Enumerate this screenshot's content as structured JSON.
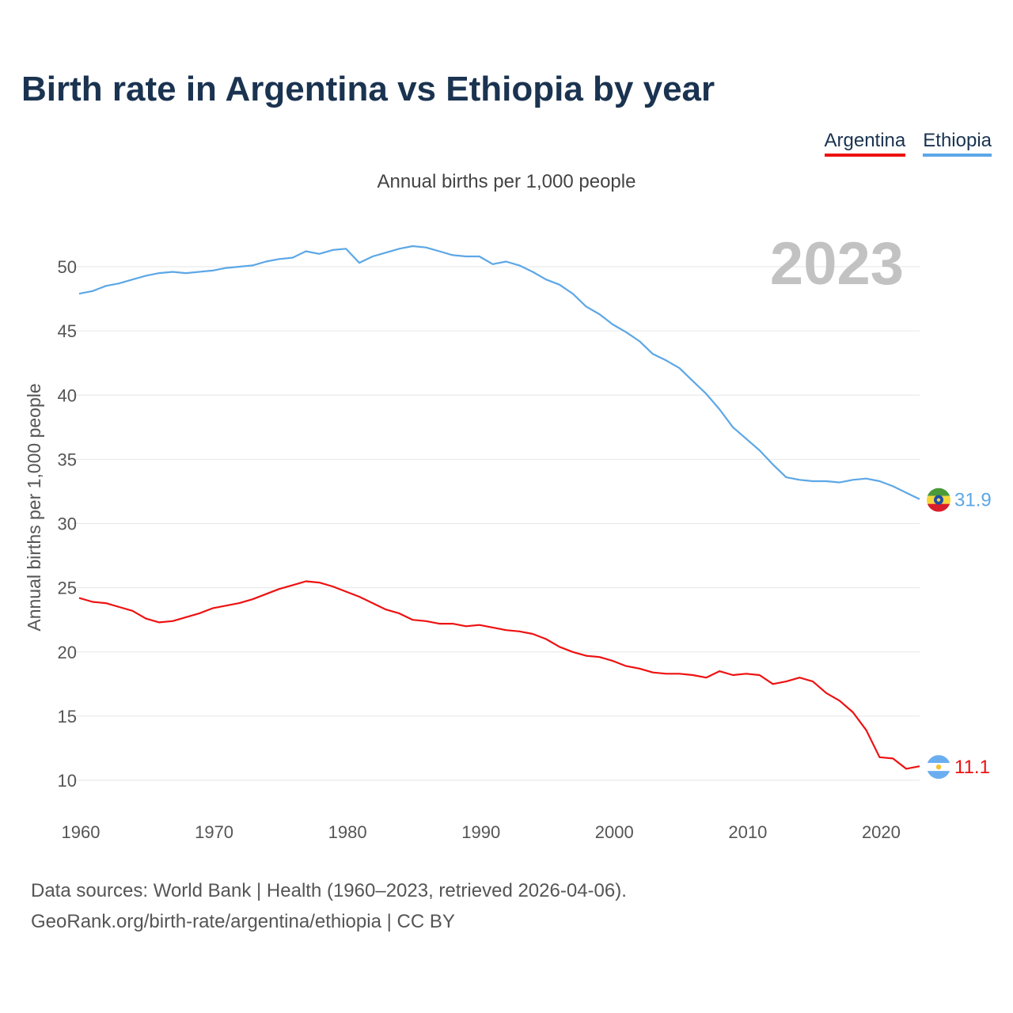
{
  "title": "Birth rate in Argentina vs Ethiopia by year",
  "subtitle": "Annual births per 1,000 people",
  "year_watermark": "2023",
  "legend": [
    {
      "label": "Argentina",
      "color": "#ee1111"
    },
    {
      "label": "Ethiopia",
      "color": "#5ca7e6"
    }
  ],
  "source": {
    "line1": "Data sources: World Bank | Health (1960–2023, retrieved 2026-04-06).",
    "line2": "GeoRank.org/birth-rate/argentina/ethiopia | CC BY"
  },
  "chart_data": {
    "type": "line",
    "title": "Birth rate in Argentina vs Ethiopia by year",
    "ylabel": "Annual births per 1,000 people",
    "xlabel": "",
    "xlim": [
      1960,
      2023
    ],
    "ylim": [
      8,
      54
    ],
    "yticks": [
      10,
      15,
      20,
      25,
      30,
      35,
      40,
      45,
      50
    ],
    "xticks": [
      1960,
      1970,
      1980,
      1990,
      2000,
      2010,
      2020
    ],
    "grid": true,
    "x": [
      1960,
      1961,
      1962,
      1963,
      1964,
      1965,
      1966,
      1967,
      1968,
      1969,
      1970,
      1971,
      1972,
      1973,
      1974,
      1975,
      1976,
      1977,
      1978,
      1979,
      1980,
      1981,
      1982,
      1983,
      1984,
      1985,
      1986,
      1987,
      1988,
      1989,
      1990,
      1991,
      1992,
      1993,
      1994,
      1995,
      1996,
      1997,
      1998,
      1999,
      2000,
      2001,
      2002,
      2003,
      2004,
      2005,
      2006,
      2007,
      2008,
      2009,
      2010,
      2011,
      2012,
      2013,
      2014,
      2015,
      2016,
      2017,
      2018,
      2019,
      2020,
      2021,
      2022,
      2023
    ],
    "series": [
      {
        "name": "Ethiopia",
        "color": "#5ca7e6",
        "end_label": "31.9",
        "values": [
          47.9,
          48.1,
          48.5,
          48.7,
          49.0,
          49.3,
          49.5,
          49.6,
          49.5,
          49.6,
          49.7,
          49.9,
          50.0,
          50.1,
          50.4,
          50.6,
          50.7,
          51.2,
          51.0,
          51.3,
          51.4,
          50.3,
          50.8,
          51.1,
          51.4,
          51.6,
          51.5,
          51.2,
          50.9,
          50.8,
          50.8,
          50.2,
          50.4,
          50.1,
          49.6,
          49.0,
          48.6,
          47.9,
          46.9,
          46.3,
          45.5,
          44.9,
          44.2,
          43.2,
          42.7,
          42.1,
          41.1,
          40.1,
          38.9,
          37.5,
          36.6,
          35.7,
          34.6,
          33.6,
          33.4,
          33.3,
          33.3,
          33.2,
          33.4,
          33.5,
          33.3,
          32.9,
          32.4,
          31.9
        ]
      },
      {
        "name": "Argentina",
        "color": "#ee1111",
        "end_label": "11.1",
        "values": [
          24.2,
          23.9,
          23.8,
          23.5,
          23.2,
          22.6,
          22.3,
          22.4,
          22.7,
          23.0,
          23.4,
          23.6,
          23.8,
          24.1,
          24.5,
          24.9,
          25.2,
          25.5,
          25.4,
          25.1,
          24.7,
          24.3,
          23.8,
          23.3,
          23.0,
          22.5,
          22.4,
          22.2,
          22.2,
          22.0,
          22.1,
          21.9,
          21.7,
          21.6,
          21.4,
          21.0,
          20.4,
          20.0,
          19.7,
          19.6,
          19.3,
          18.9,
          18.7,
          18.4,
          18.3,
          18.3,
          18.2,
          18.0,
          18.5,
          18.2,
          18.3,
          18.2,
          17.5,
          17.7,
          18.0,
          17.7,
          16.8,
          16.2,
          15.3,
          13.9,
          11.8,
          11.7,
          10.9,
          11.1
        ]
      }
    ]
  }
}
